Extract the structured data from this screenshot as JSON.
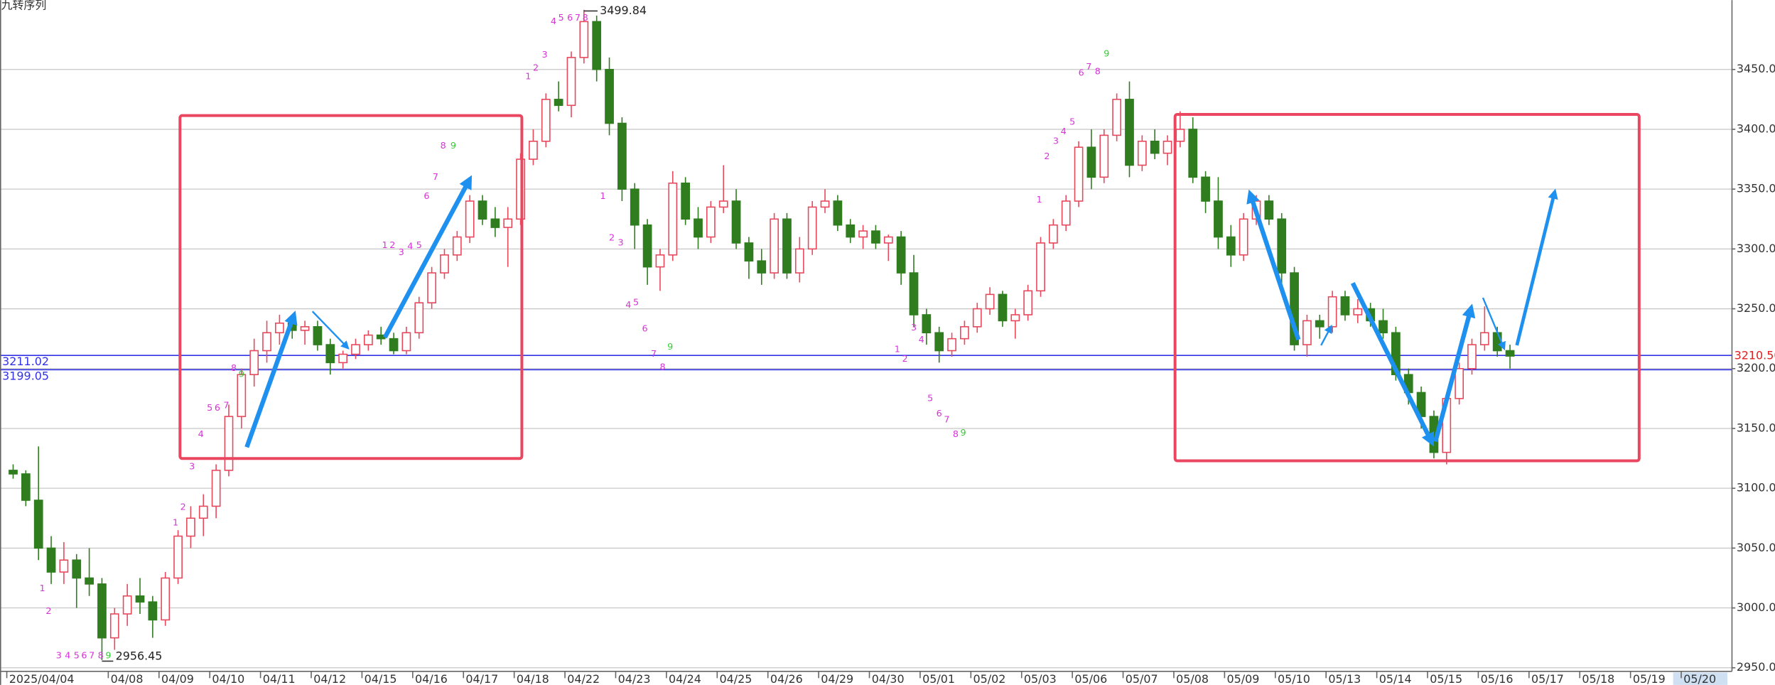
{
  "chart_data": {
    "type": "candlestick",
    "title": "九转序列",
    "ylim": [
      2947,
      3508
    ],
    "yticks": [
      {
        "value": 2950,
        "label": "2950.00"
      },
      {
        "value": 3000,
        "label": "3000.00"
      },
      {
        "value": 3050,
        "label": "3050.00"
      },
      {
        "value": 3100,
        "label": "3100.00"
      },
      {
        "value": 3150,
        "label": "3150.00"
      },
      {
        "value": 3200,
        "label": "3200.00"
      },
      {
        "value": 3250,
        "label": "3250.00"
      },
      {
        "value": 3300,
        "label": "3300.00"
      },
      {
        "value": 3350,
        "label": "3350.00"
      },
      {
        "value": 3400,
        "label": "3400.00"
      },
      {
        "value": 3450,
        "label": "3450.00"
      }
    ],
    "grid": true,
    "up_color": "#e8485c",
    "down_color": "#2f7d1f",
    "categories": [
      "2025/04/04",
      null,
      null,
      null,
      null,
      null,
      null,
      null,
      "04/08",
      null,
      null,
      null,
      "04/09",
      null,
      null,
      null,
      "04/10",
      null,
      null,
      null,
      "04/11",
      null,
      null,
      null,
      "04/12",
      null,
      null,
      null,
      "04/15",
      null,
      null,
      null,
      "04/16",
      null,
      null,
      null,
      "04/17",
      null,
      null,
      null,
      "04/18",
      null,
      null,
      null,
      "04/22",
      null,
      null,
      null,
      "04/23",
      null,
      null,
      null,
      "04/24",
      null,
      null,
      null,
      "04/25",
      null,
      null,
      null,
      "04/26",
      null,
      null,
      null,
      "04/29",
      null,
      null,
      null,
      "04/30",
      null,
      null,
      null,
      "05/01",
      null,
      null,
      null,
      "05/02",
      null,
      null,
      null,
      "05/03",
      null,
      null,
      null,
      "05/06",
      null,
      null,
      null,
      "05/07",
      null,
      null,
      null,
      "05/08",
      null,
      null,
      null,
      "05/09",
      null,
      null,
      null,
      "05/10",
      null,
      null,
      null,
      "05/13",
      null,
      null,
      null,
      "05/14",
      null,
      null,
      null,
      "05/15",
      null,
      null,
      null,
      "05/16",
      null,
      null,
      null,
      "05/17",
      null,
      null,
      null,
      "05/18",
      null,
      null,
      null,
      "05/19",
      null,
      null,
      null,
      "05/20",
      null,
      null,
      null
    ],
    "ohlc": [
      [
        3115,
        3120,
        3108,
        3112
      ],
      [
        3112,
        3115,
        3085,
        3090
      ],
      [
        3090,
        3135,
        3040,
        3050
      ],
      [
        3050,
        3060,
        3020,
        3030
      ],
      [
        3030,
        3055,
        3020,
        3040
      ],
      [
        3040,
        3045,
        3000,
        3025
      ],
      [
        3025,
        3050,
        3010,
        3020
      ],
      [
        3020,
        3025,
        2956.45,
        2975
      ],
      [
        2975,
        3000,
        2965,
        2995
      ],
      [
        2995,
        3020,
        2985,
        3010
      ],
      [
        3010,
        3025,
        2995,
        3005
      ],
      [
        3005,
        3010,
        2975,
        2990
      ],
      [
        2990,
        3030,
        2985,
        3025
      ],
      [
        3025,
        3065,
        3020,
        3060
      ],
      [
        3060,
        3085,
        3050,
        3075
      ],
      [
        3075,
        3095,
        3060,
        3085
      ],
      [
        3085,
        3120,
        3075,
        3115
      ],
      [
        3115,
        3170,
        3110,
        3160
      ],
      [
        3160,
        3200,
        3150,
        3195
      ],
      [
        3195,
        3225,
        3185,
        3215
      ],
      [
        3215,
        3240,
        3205,
        3230
      ],
      [
        3230,
        3245,
        3220,
        3238
      ],
      [
        3238,
        3245,
        3225,
        3232
      ],
      [
        3232,
        3240,
        3220,
        3235
      ],
      [
        3235,
        3240,
        3215,
        3220
      ],
      [
        3220,
        3225,
        3195,
        3205
      ],
      [
        3205,
        3215,
        3200,
        3212
      ],
      [
        3212,
        3225,
        3208,
        3220
      ],
      [
        3220,
        3232,
        3215,
        3228
      ],
      [
        3228,
        3235,
        3220,
        3225
      ],
      [
        3225,
        3230,
        3212,
        3215
      ],
      [
        3215,
        3235,
        3212,
        3230
      ],
      [
        3230,
        3260,
        3225,
        3255
      ],
      [
        3255,
        3285,
        3250,
        3280
      ],
      [
        3280,
        3300,
        3275,
        3295
      ],
      [
        3295,
        3315,
        3290,
        3310
      ],
      [
        3310,
        3345,
        3305,
        3340
      ],
      [
        3340,
        3345,
        3320,
        3325
      ],
      [
        3325,
        3335,
        3310,
        3318
      ],
      [
        3318,
        3335,
        3285,
        3325
      ],
      [
        3325,
        3380,
        3320,
        3375
      ],
      [
        3375,
        3400,
        3370,
        3390
      ],
      [
        3390,
        3430,
        3385,
        3425
      ],
      [
        3425,
        3440,
        3415,
        3420
      ],
      [
        3420,
        3465,
        3410,
        3460
      ],
      [
        3460,
        3499.84,
        3455,
        3490
      ],
      [
        3490,
        3495,
        3440,
        3450
      ],
      [
        3450,
        3460,
        3395,
        3405
      ],
      [
        3405,
        3410,
        3340,
        3350
      ],
      [
        3350,
        3355,
        3300,
        3320
      ],
      [
        3320,
        3325,
        3270,
        3285
      ],
      [
        3285,
        3300,
        3265,
        3295
      ],
      [
        3295,
        3365,
        3290,
        3355
      ],
      [
        3355,
        3360,
        3320,
        3325
      ],
      [
        3325,
        3335,
        3300,
        3310
      ],
      [
        3310,
        3340,
        3305,
        3335
      ],
      [
        3335,
        3370,
        3330,
        3340
      ],
      [
        3340,
        3350,
        3300,
        3305
      ],
      [
        3305,
        3310,
        3275,
        3290
      ],
      [
        3290,
        3300,
        3270,
        3280
      ],
      [
        3280,
        3330,
        3275,
        3325
      ],
      [
        3325,
        3330,
        3275,
        3280
      ],
      [
        3280,
        3310,
        3272,
        3300
      ],
      [
        3300,
        3340,
        3295,
        3335
      ],
      [
        3335,
        3350,
        3330,
        3340
      ],
      [
        3340,
        3345,
        3315,
        3320
      ],
      [
        3320,
        3325,
        3305,
        3310
      ],
      [
        3310,
        3320,
        3300,
        3315
      ],
      [
        3315,
        3320,
        3300,
        3305
      ],
      [
        3305,
        3312,
        3290,
        3310
      ],
      [
        3310,
        3315,
        3270,
        3280
      ],
      [
        3280,
        3295,
        3235,
        3245
      ],
      [
        3245,
        3250,
        3220,
        3230
      ],
      [
        3230,
        3235,
        3205,
        3215
      ],
      [
        3215,
        3230,
        3210,
        3225
      ],
      [
        3225,
        3240,
        3220,
        3235
      ],
      [
        3235,
        3255,
        3230,
        3250
      ],
      [
        3250,
        3268,
        3245,
        3262
      ],
      [
        3262,
        3265,
        3235,
        3240
      ],
      [
        3240,
        3250,
        3225,
        3245
      ],
      [
        3245,
        3270,
        3240,
        3265
      ],
      [
        3265,
        3310,
        3260,
        3305
      ],
      [
        3305,
        3325,
        3300,
        3320
      ],
      [
        3320,
        3345,
        3315,
        3340
      ],
      [
        3340,
        3390,
        3335,
        3385
      ],
      [
        3385,
        3400,
        3350,
        3360
      ],
      [
        3360,
        3400,
        3355,
        3395
      ],
      [
        3395,
        3430,
        3390,
        3425
      ],
      [
        3425,
        3440,
        3360,
        3370
      ],
      [
        3370,
        3395,
        3365,
        3390
      ],
      [
        3390,
        3400,
        3375,
        3380
      ],
      [
        3380,
        3395,
        3370,
        3390
      ],
      [
        3390,
        3415,
        3385,
        3400
      ],
      [
        3400,
        3410,
        3355,
        3360
      ],
      [
        3360,
        3365,
        3330,
        3340
      ],
      [
        3340,
        3360,
        3300,
        3310
      ],
      [
        3310,
        3320,
        3285,
        3295
      ],
      [
        3295,
        3330,
        3290,
        3325
      ],
      [
        3325,
        3345,
        3320,
        3340
      ],
      [
        3340,
        3345,
        3320,
        3325
      ],
      [
        3325,
        3330,
        3270,
        3280
      ],
      [
        3280,
        3285,
        3215,
        3220
      ],
      [
        3220,
        3245,
        3210,
        3240
      ],
      [
        3240,
        3245,
        3225,
        3235
      ],
      [
        3235,
        3265,
        3230,
        3260
      ],
      [
        3260,
        3265,
        3240,
        3245
      ],
      [
        3245,
        3258,
        3238,
        3250
      ],
      [
        3250,
        3255,
        3235,
        3240
      ],
      [
        3240,
        3250,
        3225,
        3230
      ],
      [
        3230,
        3235,
        3190,
        3195
      ],
      [
        3195,
        3200,
        3170,
        3180
      ],
      [
        3180,
        3185,
        3150,
        3160
      ],
      [
        3160,
        3165,
        3125,
        3130
      ],
      [
        3130,
        3180,
        3120,
        3175
      ],
      [
        3175,
        3205,
        3170,
        3200
      ],
      [
        3200,
        3225,
        3195,
        3220
      ],
      [
        3220,
        3252,
        3215,
        3230
      ],
      [
        3230,
        3235,
        3210,
        3215
      ],
      [
        3215,
        3220,
        3200,
        3210.5
      ],
      null,
      null,
      null,
      null,
      null,
      null,
      null,
      null,
      null,
      null,
      null,
      null,
      null,
      null,
      null,
      null,
      null
    ],
    "hlines": [
      3211.02,
      3199.05
    ],
    "hline_color": "#3232e6",
    "last_price": {
      "value": 3210.5,
      "label": "3210.50"
    },
    "last_price_color": "#e01e1e",
    "high": {
      "value": 3499.84,
      "slot": 45
    },
    "low": {
      "value": 2956.45,
      "slot": 7
    },
    "td_color": "#d633d6",
    "td_marks": [
      {
        "text": "1",
        "slot": 2.3,
        "price": 3016
      },
      {
        "text": "2",
        "slot": 2.8,
        "price": 2997
      },
      {
        "text": "3",
        "slot": 3.6,
        "price": 2960
      },
      {
        "text": "4",
        "slot": 4.3,
        "price": 2960
      },
      {
        "text": "5",
        "slot": 5.0,
        "price": 2960
      },
      {
        "text": "6",
        "slot": 5.6,
        "price": 2960
      },
      {
        "text": "7",
        "slot": 6.2,
        "price": 2960
      },
      {
        "text": "8",
        "slot": 6.9,
        "price": 2960
      },
      {
        "text": "9",
        "slot": 7.5,
        "price": 2960,
        "color": "#33cc33"
      },
      {
        "text": "1",
        "slot": 12.8,
        "price": 3071
      },
      {
        "text": "2",
        "slot": 13.4,
        "price": 3084
      },
      {
        "text": "3",
        "slot": 14.1,
        "price": 3118
      },
      {
        "text": "4",
        "slot": 14.8,
        "price": 3145
      },
      {
        "text": "5",
        "slot": 15.5,
        "price": 3167
      },
      {
        "text": "6",
        "slot": 16.1,
        "price": 3167
      },
      {
        "text": "7",
        "slot": 16.8,
        "price": 3169
      },
      {
        "text": "8",
        "slot": 17.4,
        "price": 3200
      },
      {
        "text": "9",
        "slot": 18.0,
        "price": 3195,
        "color": "#33cc33"
      },
      {
        "text": "1",
        "slot": 29.3,
        "price": 3303
      },
      {
        "text": "2",
        "slot": 29.9,
        "price": 3303
      },
      {
        "text": "3",
        "slot": 30.6,
        "price": 3297
      },
      {
        "text": "4",
        "slot": 31.3,
        "price": 3302
      },
      {
        "text": "5",
        "slot": 32.0,
        "price": 3303
      },
      {
        "text": "6",
        "slot": 32.6,
        "price": 3344
      },
      {
        "text": "7",
        "slot": 33.3,
        "price": 3360
      },
      {
        "text": "8",
        "slot": 33.9,
        "price": 3386
      },
      {
        "text": "9",
        "slot": 34.7,
        "price": 3386,
        "color": "#33cc33"
      },
      {
        "text": "1",
        "slot": 40.6,
        "price": 3444
      },
      {
        "text": "2",
        "slot": 41.2,
        "price": 3451
      },
      {
        "text": "3",
        "slot": 41.9,
        "price": 3462
      },
      {
        "text": "4",
        "slot": 42.6,
        "price": 3490
      },
      {
        "text": "5",
        "slot": 43.2,
        "price": 3493
      },
      {
        "text": "6",
        "slot": 43.9,
        "price": 3493
      },
      {
        "text": "7",
        "slot": 44.5,
        "price": 3493
      },
      {
        "text": "8",
        "slot": 45.1,
        "price": 3493
      },
      {
        "text": "1",
        "slot": 46.5,
        "price": 3344
      },
      {
        "text": "2",
        "slot": 47.2,
        "price": 3309
      },
      {
        "text": "3",
        "slot": 47.9,
        "price": 3305
      },
      {
        "text": "4",
        "slot": 48.5,
        "price": 3253
      },
      {
        "text": "5",
        "slot": 49.1,
        "price": 3255
      },
      {
        "text": "6",
        "slot": 49.8,
        "price": 3233
      },
      {
        "text": "7",
        "slot": 50.5,
        "price": 3212
      },
      {
        "text": "8",
        "slot": 51.2,
        "price": 3201
      },
      {
        "text": "9",
        "slot": 51.8,
        "price": 3218,
        "color": "#33cc33"
      },
      {
        "text": "1",
        "slot": 69.7,
        "price": 3216
      },
      {
        "text": "2",
        "slot": 70.3,
        "price": 3208
      },
      {
        "text": "3",
        "slot": 71.0,
        "price": 3234
      },
      {
        "text": "4",
        "slot": 71.6,
        "price": 3224
      },
      {
        "text": "5",
        "slot": 72.3,
        "price": 3175
      },
      {
        "text": "6",
        "slot": 73.0,
        "price": 3162
      },
      {
        "text": "7",
        "slot": 73.6,
        "price": 3157
      },
      {
        "text": "8",
        "slot": 74.3,
        "price": 3145
      },
      {
        "text": "9",
        "slot": 74.9,
        "price": 3146,
        "color": "#33cc33"
      },
      {
        "text": "1",
        "slot": 80.9,
        "price": 3341
      },
      {
        "text": "2",
        "slot": 81.5,
        "price": 3377
      },
      {
        "text": "3",
        "slot": 82.2,
        "price": 3390
      },
      {
        "text": "4",
        "slot": 82.8,
        "price": 3398
      },
      {
        "text": "5",
        "slot": 83.5,
        "price": 3406
      },
      {
        "text": "6",
        "slot": 84.2,
        "price": 3447
      },
      {
        "text": "7",
        "slot": 84.8,
        "price": 3452
      },
      {
        "text": "8",
        "slot": 85.5,
        "price": 3448
      },
      {
        "text": "9",
        "slot": 86.2,
        "price": 3463,
        "color": "#33cc33"
      }
    ]
  }
}
